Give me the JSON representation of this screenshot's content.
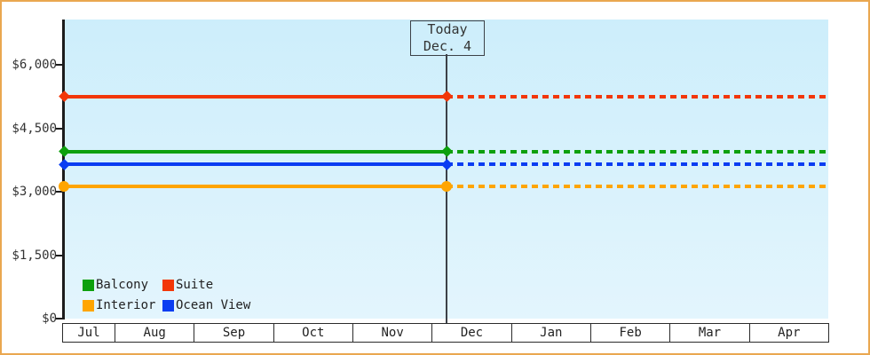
{
  "window": {
    "background_color": "#ffffff",
    "border_color": "#eaa750"
  },
  "chart_data": {
    "type": "line",
    "title": "",
    "xlabel": "",
    "ylabel": "",
    "categories": [
      "Jul",
      "Aug",
      "Sep",
      "Oct",
      "Nov",
      "Dec",
      "Jan",
      "Feb",
      "Mar",
      "Apr"
    ],
    "ylim": [
      0,
      6300
    ],
    "grid": false,
    "plot_background": {
      "top": "#cdeefb",
      "bottom": "#e3f5fd"
    },
    "axis_color": "#1c1c1c",
    "y_ticks": [
      {
        "value": 0,
        "label": "$0"
      },
      {
        "value": 1500,
        "label": "$1,500"
      },
      {
        "value": 3000,
        "label": "$3,000"
      },
      {
        "value": 4500,
        "label": "$4,500"
      },
      {
        "value": 6000,
        "label": "$6,000"
      }
    ],
    "today_annotation": {
      "line1": "Today",
      "line2": "Dec. 4",
      "box_border_color": "#3c4147",
      "line_color": "#3c4147",
      "x_category": "Dec"
    },
    "series": [
      {
        "name": "Suite",
        "color": "#f23708",
        "value": 5250,
        "marker": "diamond",
        "style_before_today": "solid",
        "style_after_today": "dashed"
      },
      {
        "name": "Balcony",
        "color": "#0da00d",
        "value": 3950,
        "marker": "diamond",
        "style_before_today": "solid",
        "style_after_today": "dashed"
      },
      {
        "name": "Ocean View",
        "color": "#0a3df2",
        "value": 3650,
        "marker": "diamond",
        "style_before_today": "solid",
        "style_after_today": "dashed"
      },
      {
        "name": "Interior",
        "color": "#ffa500",
        "value": 3130,
        "marker": "circle",
        "style_before_today": "solid",
        "style_after_today": "dashed"
      }
    ],
    "legend": [
      {
        "name": "Balcony",
        "color": "#0da00d"
      },
      {
        "name": "Suite",
        "color": "#f23708"
      },
      {
        "name": "Interior",
        "color": "#ffa500"
      },
      {
        "name": "Ocean View",
        "color": "#0a3df2"
      }
    ],
    "legend_position": "bottom-left-inside"
  }
}
